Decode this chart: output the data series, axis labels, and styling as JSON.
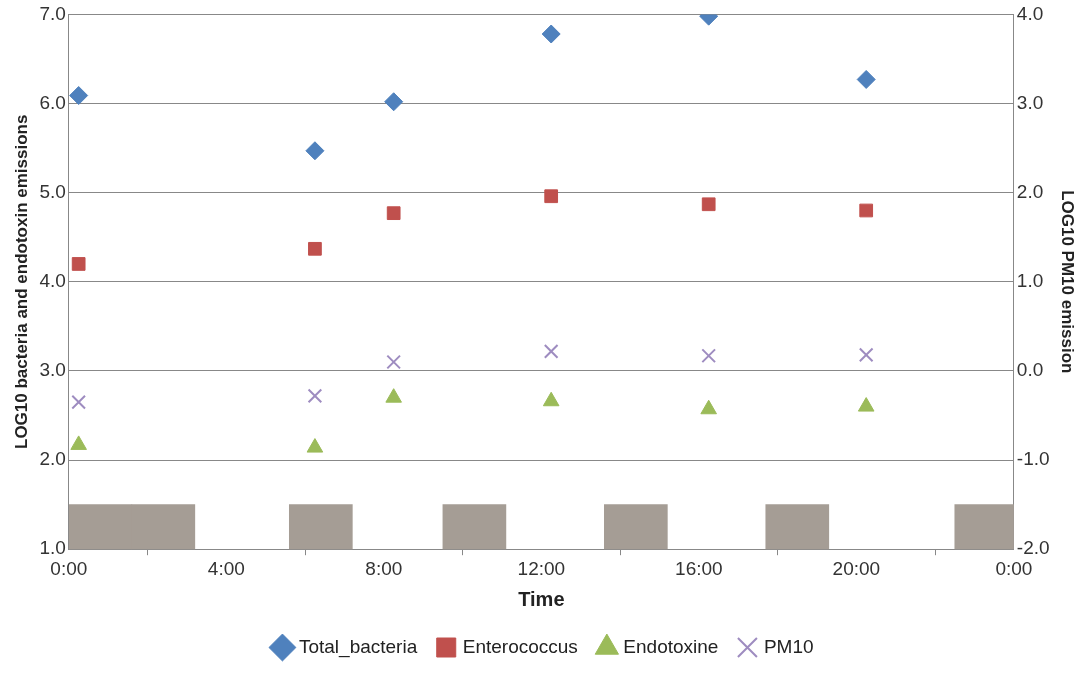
{
  "chart_data": {
    "type": "scatter",
    "xlabel": "Time",
    "ylabel": "LOG10 bacteria and endotoxin emissions",
    "y2label": "LOG10 PM10 emission",
    "xlim": [
      0,
      24
    ],
    "xticks": [
      {
        "value": 0,
        "label": "0:00"
      },
      {
        "value": 4,
        "label": "4:00"
      },
      {
        "value": 8,
        "label": "8:00"
      },
      {
        "value": 12,
        "label": "12:00"
      },
      {
        "value": 16,
        "label": "16:00"
      },
      {
        "value": 20,
        "label": "20:00"
      },
      {
        "value": 24,
        "label": "0:00"
      }
    ],
    "ylim": [
      1,
      7
    ],
    "yticks": [
      {
        "value": 1,
        "label": "1.0"
      },
      {
        "value": 2,
        "label": "2.0"
      },
      {
        "value": 3,
        "label": "3.0"
      },
      {
        "value": 4,
        "label": "4.0"
      },
      {
        "value": 5,
        "label": "5.0"
      },
      {
        "value": 6,
        "label": "6.0"
      },
      {
        "value": 7,
        "label": "7.0"
      }
    ],
    "y2lim": [
      -2,
      4
    ],
    "y2ticks": [
      {
        "value": -2,
        "label": "-2.0"
      },
      {
        "value": -1,
        "label": "-1.0"
      },
      {
        "value": 0,
        "label": "0.0"
      },
      {
        "value": 1,
        "label": "1.0"
      },
      {
        "value": 2,
        "label": "2.0"
      },
      {
        "value": 3,
        "label": "3.0"
      },
      {
        "value": 4,
        "label": "4.0"
      }
    ],
    "grid": "y",
    "legend": "bottom",
    "x": [
      0.25,
      6.25,
      8.25,
      12.25,
      16.25,
      20.25
    ],
    "series": [
      {
        "type": "bar",
        "color": "#a59d95",
        "x": [
          0.8,
          2.4,
          6.4,
          10.3,
          14.4,
          18.5,
          23.3
        ],
        "values": [
          1.5,
          1.5,
          1.5,
          1.5,
          1.5,
          1.5,
          1.5
        ]
      },
      {
        "name": "Total_bacteria",
        "color": "#4f81bd",
        "marker": "diamond",
        "values": [
          6.09,
          5.47,
          6.02,
          6.78,
          6.98,
          6.27
        ]
      },
      {
        "name": "Enterococcus",
        "color": "#c0504d",
        "marker": "square",
        "values": [
          4.2,
          4.37,
          4.77,
          4.96,
          4.87,
          4.8
        ]
      },
      {
        "name": "Endotoxine",
        "color": "#9bbb59",
        "marker": "triangle",
        "values": [
          2.17,
          2.14,
          2.7,
          2.66,
          2.57,
          2.6
        ]
      },
      {
        "name": "PM10",
        "color": "#9e8cc0",
        "marker": "cross",
        "axis": "y2",
        "values": [
          -0.35,
          -0.28,
          0.1,
          0.22,
          0.17,
          0.18
        ]
      }
    ]
  }
}
